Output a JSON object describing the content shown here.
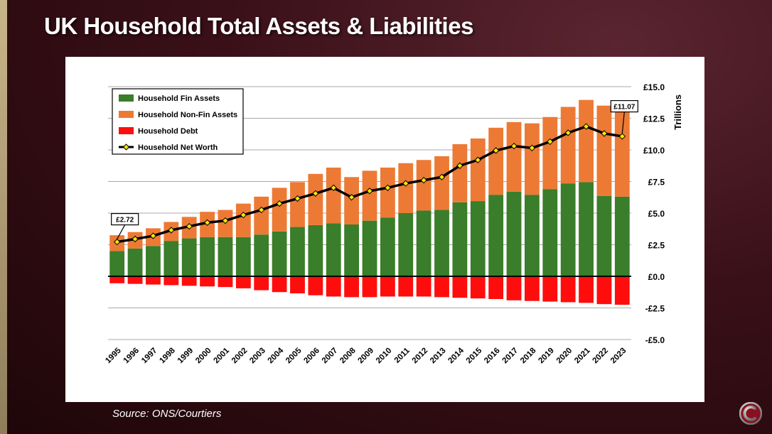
{
  "header": {
    "title": "UK Household Total Assets & Liabilities"
  },
  "footer": {
    "source": "Source: ONS/Courtiers"
  },
  "icons": {
    "logo": "courtiers-logo-icon"
  },
  "colors": {
    "fin_assets": "#3a7d2a",
    "non_fin_assets": "#ec7a35",
    "debt": "#ff0d0d",
    "net_worth": "#000000",
    "marker": "#f5e600"
  },
  "chart_data": {
    "type": "bar",
    "title": "",
    "xlabel": "",
    "ylabel": "Trillions",
    "ylim": [
      -5,
      15
    ],
    "yticks": [
      15,
      12.5,
      10,
      7.5,
      5,
      2.5,
      0,
      -2.5,
      -5
    ],
    "ytick_labels": [
      "£15.0",
      "£12.5",
      "£10.0",
      "£7.5",
      "£5.0",
      "£2.5",
      "£0.0",
      "-£2.5",
      "-£5.0"
    ],
    "grid": true,
    "stacked": true,
    "legend_position": "top-left",
    "categories": [
      "1995",
      "1996",
      "1997",
      "1998",
      "1999",
      "2000",
      "2001",
      "2002",
      "2003",
      "2004",
      "2005",
      "2006",
      "2007",
      "2008",
      "2009",
      "2010",
      "2011",
      "2012",
      "2013",
      "2014",
      "2015",
      "2016",
      "2017",
      "2018",
      "2019",
      "2020",
      "2021",
      "2022",
      "2023"
    ],
    "series": [
      {
        "name": "Household Fin Assets",
        "kind": "bar",
        "values": [
          2.0,
          2.2,
          2.4,
          2.8,
          3.0,
          3.1,
          3.1,
          3.1,
          3.3,
          3.55,
          3.9,
          4.05,
          4.2,
          4.1,
          4.4,
          4.65,
          5.0,
          5.2,
          5.25,
          5.85,
          5.95,
          6.45,
          6.7,
          6.45,
          6.9,
          7.35,
          7.45,
          6.35,
          6.3
        ]
      },
      {
        "name": "Household Non-Fin Assets",
        "kind": "bar",
        "values": [
          1.25,
          1.3,
          1.4,
          1.5,
          1.7,
          2.0,
          2.15,
          2.65,
          3.0,
          3.45,
          3.55,
          4.05,
          4.4,
          3.75,
          3.95,
          3.95,
          3.95,
          4.0,
          4.25,
          4.6,
          4.95,
          5.3,
          5.5,
          5.65,
          5.7,
          6.05,
          6.5,
          7.15,
          6.9
        ]
      },
      {
        "name": "Household Debt",
        "kind": "bar",
        "values": [
          -0.55,
          -0.6,
          -0.65,
          -0.7,
          -0.75,
          -0.8,
          -0.85,
          -0.95,
          -1.1,
          -1.25,
          -1.35,
          -1.5,
          -1.6,
          -1.65,
          -1.65,
          -1.6,
          -1.6,
          -1.6,
          -1.65,
          -1.7,
          -1.75,
          -1.8,
          -1.9,
          -1.95,
          -2.0,
          -2.05,
          -2.1,
          -2.2,
          -2.25
        ]
      },
      {
        "name": "Household Net Worth",
        "kind": "line",
        "values": [
          2.72,
          2.95,
          3.2,
          3.65,
          3.95,
          4.25,
          4.4,
          4.85,
          5.25,
          5.75,
          6.15,
          6.55,
          7.0,
          6.25,
          6.75,
          7.0,
          7.35,
          7.6,
          7.85,
          8.75,
          9.2,
          9.95,
          10.3,
          10.15,
          10.65,
          11.35,
          11.85,
          11.3,
          11.07
        ]
      }
    ],
    "annotations": [
      {
        "category": "1995",
        "text": "£2.72"
      },
      {
        "category": "2023",
        "text": "£11.07"
      }
    ]
  }
}
